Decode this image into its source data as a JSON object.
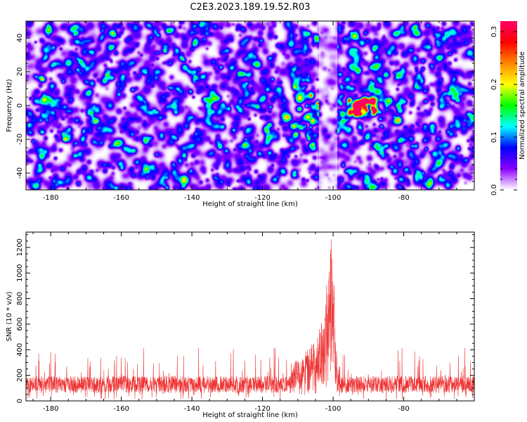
{
  "title": "C2E3.2023.189.19.52.R03",
  "chart_data": [
    {
      "type": "heatmap",
      "xlabel": "Height of straight line (km)",
      "ylabel": "Frequency (Hz)",
      "xlim": [
        -187,
        -60
      ],
      "ylim": [
        -50,
        50
      ],
      "x_ticks": [
        -180,
        -160,
        -140,
        -120,
        -100,
        -80
      ],
      "y_ticks": [
        -40,
        -20,
        0,
        20,
        40
      ],
      "colorbar": {
        "label": "Normalized spectral amplitude",
        "range": [
          0.0,
          0.32
        ],
        "ticks": [
          0.0,
          0.1,
          0.2,
          0.3
        ],
        "colors": [
          "#ffffff",
          "#8a00ff",
          "#0000ff",
          "#00ffff",
          "#00ff00",
          "#ffff00",
          "#ff8800",
          "#ff0000",
          "#ff0066"
        ]
      },
      "background_level": 0.02,
      "features": [
        {
          "x": -104,
          "y": -4,
          "width_km": 9,
          "height_hz": 20,
          "peak": 0.15
        },
        {
          "x": -92,
          "y": -1,
          "width_km": 5,
          "height_hz": 6,
          "peak": 0.27
        }
      ],
      "clear_band_km": [
        -104,
        -99
      ]
    },
    {
      "type": "line",
      "xlabel": "Height of straight line (km)",
      "ylabel": "SNR (10 * v/v)",
      "xlim": [
        -187,
        -60
      ],
      "ylim": [
        0,
        1320
      ],
      "x_ticks": [
        -180,
        -160,
        -140,
        -120,
        -100,
        -80
      ],
      "y_ticks": [
        0,
        200,
        400,
        600,
        800,
        1000,
        1200
      ],
      "color": "#ee3333",
      "baseline_mean": 150,
      "noise_max": 420,
      "peak": {
        "x": -100.5,
        "y": 1320
      },
      "peak_envelope": [
        [
          -112,
          300
        ],
        [
          -108,
          380
        ],
        [
          -106,
          450
        ],
        [
          -104,
          560
        ],
        [
          -103,
          720
        ],
        [
          -102,
          880
        ],
        [
          -101,
          1080
        ],
        [
          -100.5,
          1320
        ],
        [
          -100,
          1150
        ],
        [
          -99.5,
          700
        ],
        [
          -99,
          380
        ],
        [
          -98,
          280
        ]
      ]
    }
  ]
}
